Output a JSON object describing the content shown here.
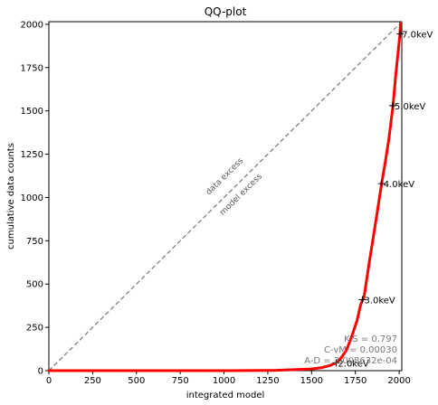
{
  "chart_data": {
    "type": "line",
    "title": "QQ-plot",
    "xlabel": "integrated model",
    "ylabel": "cumulative data counts",
    "xlim": [
      0,
      2015
    ],
    "ylim": [
      0,
      2015
    ],
    "xticks": [
      0,
      250,
      500,
      750,
      1000,
      1250,
      1500,
      1750,
      2000
    ],
    "yticks": [
      0,
      250,
      500,
      750,
      1000,
      1250,
      1500,
      1750,
      2000
    ],
    "grid": false,
    "diagonal_labels": [
      "data excess",
      "model excess"
    ],
    "series": [
      {
        "color": "#ff0000",
        "x": [
          0,
          500,
          1000,
          1300,
          1500,
          1560,
          1600,
          1640,
          1670,
          1700,
          1730,
          1760,
          1780,
          1800,
          1830,
          1860,
          1880,
          1900,
          1920,
          1940,
          1955,
          1965,
          1980,
          1995,
          2003,
          2008
        ],
        "y": [
          0,
          0,
          0,
          2,
          10,
          18,
          28,
          45,
          75,
          120,
          200,
          290,
          380,
          430,
          630,
          820,
          950,
          1080,
          1200,
          1330,
          1450,
          1530,
          1700,
          1850,
          1930,
          2005
        ]
      }
    ],
    "energy_markers": [
      {
        "label": "2.0keV",
        "x": 1640,
        "y": 45
      },
      {
        "label": "3.0keV",
        "x": 1790,
        "y": 410
      },
      {
        "label": "4.0keV",
        "x": 1900,
        "y": 1080
      },
      {
        "label": "5.0keV",
        "x": 1963,
        "y": 1530
      },
      {
        "label": "7.0keV",
        "x": 2005,
        "y": 1945
      }
    ],
    "stats": [
      "K-S = 0.797",
      "C-vM = 0.00030",
      "A-D = 2.008632e-04"
    ],
    "colors": {
      "curve": "#ff0000",
      "diagonal": "#808080",
      "axes": "#000000"
    }
  }
}
